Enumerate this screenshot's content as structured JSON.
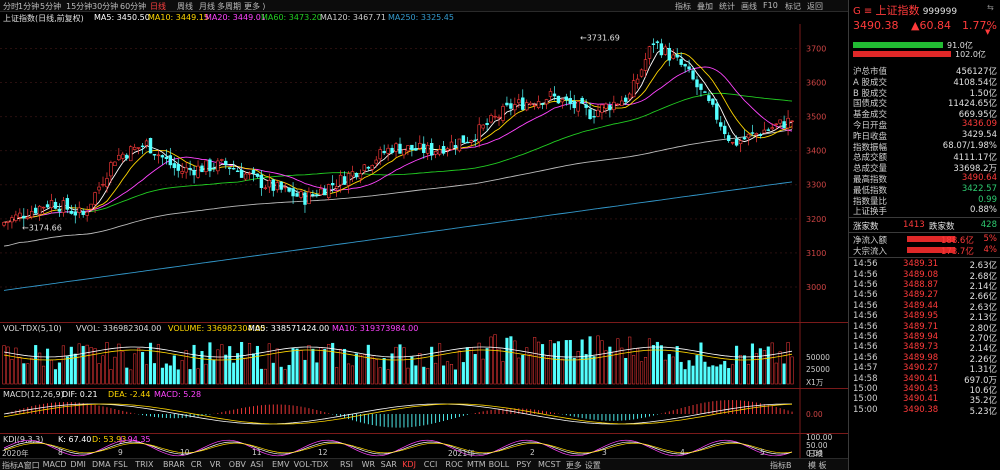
{
  "toolbar": {
    "items": [
      "分时",
      "1分钟",
      "5分钟",
      "15分钟",
      "30分钟",
      "60分钟",
      "日线",
      "周线",
      "月线",
      "多周期",
      "更多 ⟩"
    ],
    "active": "日线",
    "right_items": [
      "指标",
      "叠加",
      "统计",
      "画线",
      "F10",
      "标记",
      "返回"
    ]
  },
  "chart_title": "上证指数(日线,前复权)",
  "ma_legend": [
    {
      "text": "MA5: 3450.50",
      "color": "#ffffff"
    },
    {
      "text": "MA10: 3449.15",
      "color": "#ffd700"
    },
    {
      "text": "MA20: 3449.01",
      "color": "#ff44ff"
    },
    {
      "text": "MA60: 3473.20",
      "color": "#22cc22"
    },
    {
      "text": "MA120: 3467.71",
      "color": "#cccccc"
    },
    {
      "text": "MA250: 3325.45",
      "color": "#3399cc"
    }
  ],
  "price_axis": [
    "3700",
    "3600",
    "3500",
    "3400",
    "3300",
    "3200",
    "3100",
    "3000"
  ],
  "annotations": {
    "high": "3731.69",
    "low": "3174.66"
  },
  "volume": {
    "legend": [
      {
        "text": "VOL-TDX(5,10)",
        "color": "#dddddd"
      },
      {
        "text": "VVOL: 336982304.00",
        "color": "#dddddd"
      },
      {
        "text": "VOLUME: 336982304.00",
        "color": "#ffd700"
      },
      {
        "text": "MA5: 338571424.00",
        "color": "#ffffff"
      },
      {
        "text": "MA10: 319373984.00",
        "color": "#ff44ff"
      }
    ],
    "axis": [
      "50000",
      "25000",
      "X1万"
    ]
  },
  "macd": {
    "legend": [
      {
        "text": "MACD(12,26,9)",
        "color": "#dddddd"
      },
      {
        "text": "DIF: 0.21",
        "color": "#ffffff"
      },
      {
        "text": "DEA: -2.44",
        "color": "#ffd700"
      },
      {
        "text": "MACD: 5.28",
        "color": "#ff44ff"
      }
    ],
    "axis": [
      "0.00"
    ]
  },
  "kdj": {
    "legend": [
      {
        "text": "KDJ(9,3,3)",
        "color": "#dddddd"
      },
      {
        "text": "K: 67.40",
        "color": "#ffffff"
      },
      {
        "text": "D: 53.93",
        "color": "#ffd700"
      },
      {
        "text": "J: 94.35",
        "color": "#ff44ff"
      }
    ],
    "axis": [
      "100.00",
      "50.00",
      "0.00"
    ]
  },
  "x_axis": [
    "2020年",
    "8",
    "9",
    "10",
    "11",
    "12",
    "2021年",
    "2",
    "3",
    "4",
    "5",
    "日线"
  ],
  "bottom_tabs": [
    "指标A",
    "窗口",
    "MACD",
    "DMI",
    "DMA",
    "FSL",
    "TRIX",
    "BRAR",
    "CR",
    "VR",
    "OBV",
    "ASI",
    "EMV",
    "VOL-TDX",
    "RSI",
    "WR",
    "SAR",
    "KDJ",
    "CCI",
    "ROC",
    "MTM",
    "BOLL",
    "PSY",
    "MCST",
    "更多",
    "设置"
  ],
  "bottom_active": "KDJ",
  "bottom_right": [
    "指标B",
    "模 板"
  ],
  "quote": {
    "prefix": "G ≡",
    "name": "上证指数",
    "code": "999999",
    "price": "3490.38",
    "change": "▲60.84",
    "pct": "1.77%",
    "bar1_value": "91.0亿",
    "bar2_value": "102.0亿"
  },
  "stats": [
    {
      "label": "沪总市值",
      "value": "456127亿",
      "color": "white"
    },
    {
      "label": "A 股成交",
      "value": "4108.54亿",
      "color": "white"
    },
    {
      "label": "B 股成交",
      "value": "1.50亿",
      "color": "white"
    },
    {
      "label": "国债成交",
      "value": "11424.65亿",
      "color": "white"
    },
    {
      "label": "基金成交",
      "value": "669.95亿",
      "color": "white"
    },
    {
      "label": "今日开盘",
      "value": "3436.09",
      "color": "red"
    },
    {
      "label": "昨日收盘",
      "value": "3429.54",
      "color": "white"
    },
    {
      "label": "指数振幅",
      "value": "68.07/1.98%",
      "color": "white"
    },
    {
      "label": "总成交额",
      "value": "4111.17亿",
      "color": "white"
    },
    {
      "label": "总成交量",
      "value": "33698.2万",
      "color": "white"
    },
    {
      "label": "最高指数",
      "value": "3490.64",
      "color": "red"
    },
    {
      "label": "最低指数",
      "value": "3422.57",
      "color": "green"
    },
    {
      "label": "指数量比",
      "value": "0.99",
      "color": "green"
    },
    {
      "label": "上证换手",
      "value": "0.88%",
      "color": "white"
    }
  ],
  "breadth": {
    "up_label": "涨家数",
    "up": "1413",
    "down_label": "跌家数",
    "down": "428"
  },
  "flows": [
    {
      "label": "净流入额",
      "value": "188.6亿",
      "pct": "5%"
    },
    {
      "label": "大宗流入",
      "value": "173.7亿",
      "pct": "4%"
    }
  ],
  "ticks": [
    {
      "time": "14:56",
      "price": "3489.31",
      "vol": "2.63亿"
    },
    {
      "time": "14:56",
      "price": "3489.08",
      "vol": "2.68亿"
    },
    {
      "time": "14:56",
      "price": "3488.87",
      "vol": "2.14亿"
    },
    {
      "time": "14:56",
      "price": "3489.27",
      "vol": "2.66亿"
    },
    {
      "time": "14:56",
      "price": "3489.44",
      "vol": "2.63亿"
    },
    {
      "time": "14:56",
      "price": "3489.95",
      "vol": "2.13亿"
    },
    {
      "time": "14:56",
      "price": "3489.71",
      "vol": "2.80亿"
    },
    {
      "time": "14:56",
      "price": "3489.94",
      "vol": "2.70亿"
    },
    {
      "time": "14:56",
      "price": "3489.73",
      "vol": "2.14亿"
    },
    {
      "time": "14:56",
      "price": "3489.98",
      "vol": "2.26亿"
    },
    {
      "time": "14:57",
      "price": "3490.27",
      "vol": "1.31亿"
    },
    {
      "time": "14:58",
      "price": "3490.41",
      "vol": "697.0万"
    },
    {
      "time": "15:00",
      "price": "3490.43",
      "vol": "10.6亿"
    },
    {
      "time": "15:00",
      "price": "3490.41",
      "vol": "35.2亿"
    },
    {
      "time": "15:00",
      "price": "3490.38",
      "vol": "5.23亿"
    }
  ]
}
